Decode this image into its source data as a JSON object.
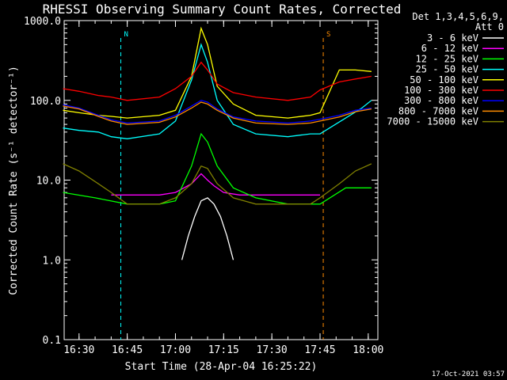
{
  "chart_data": {
    "type": "line",
    "title": "RHESSI Observing Summary Count Rates, Corrected",
    "xlabel": "Start Time (28-Apr-04 16:25:22)",
    "ylabel": "Corrected Count Rate (s⁻¹ detector⁻¹)",
    "yscale": "log",
    "ylim": [
      0.1,
      1000
    ],
    "xlim": [
      "16:25:22",
      "18:03:00"
    ],
    "yticks": [
      "1000.0",
      "100.0",
      "10.0",
      "1.0",
      "0.1"
    ],
    "xticks": [
      "16:30",
      "16:45",
      "17:00",
      "17:15",
      "17:30",
      "17:45",
      "18:00"
    ],
    "legend_header": [
      "Det 1,3,4,5,6,9,",
      "Att 0"
    ],
    "legend_position": "right",
    "footer": "17-Oct-2021 03:57",
    "markers": [
      {
        "label": "N",
        "color": "#00ffff",
        "x": "16:43"
      },
      {
        "label": "S",
        "color": "#ff8c00",
        "x": "17:46"
      }
    ],
    "series": [
      {
        "name": "3 - 6 keV",
        "color": "#ffffff",
        "x": [
          "17:02",
          "17:04",
          "17:06",
          "17:08",
          "17:10",
          "17:12",
          "17:14",
          "17:16",
          "17:18"
        ],
        "values": [
          1.0,
          2.0,
          3.5,
          5.5,
          6.0,
          5.0,
          3.5,
          2.0,
          1.0
        ]
      },
      {
        "name": "6 - 12 keV",
        "color": "#ff00ff",
        "x": [
          "16:40",
          "16:45",
          "16:50",
          "16:55",
          "17:00",
          "17:05",
          "17:08",
          "17:10",
          "17:12",
          "17:15",
          "17:20",
          "17:25",
          "17:30",
          "17:35",
          "17:40",
          "17:45"
        ],
        "values": [
          6.5,
          6.5,
          6.5,
          6.5,
          7.0,
          9.0,
          12.0,
          10.0,
          8.5,
          7.0,
          6.5,
          6.5,
          6.5,
          6.5,
          6.5,
          6.5
        ]
      },
      {
        "name": "12 - 25 keV",
        "color": "#00ff00",
        "x": [
          "16:25",
          "16:35",
          "16:45",
          "16:55",
          "17:00",
          "17:05",
          "17:08",
          "17:10",
          "17:13",
          "17:18",
          "17:25",
          "17:35",
          "17:45",
          "17:53",
          "17:58",
          "18:01"
        ],
        "values": [
          7.0,
          6.0,
          5.0,
          5.0,
          5.5,
          15.0,
          38.0,
          30.0,
          15.0,
          8.0,
          6.0,
          5.0,
          5.0,
          8.0,
          8.0,
          8.0
        ]
      },
      {
        "name": "25 - 50 keV",
        "color": "#00ffff",
        "x": [
          "16:25",
          "16:30",
          "16:36",
          "16:40",
          "16:45",
          "16:55",
          "17:00",
          "17:05",
          "17:08",
          "17:10",
          "17:13",
          "17:18",
          "17:25",
          "17:35",
          "17:42",
          "17:45",
          "17:53",
          "17:58",
          "18:01"
        ],
        "values": [
          45,
          42,
          40,
          35,
          33,
          38,
          55,
          180,
          500,
          300,
          100,
          50,
          38,
          35,
          38,
          38,
          60,
          80,
          100
        ]
      },
      {
        "name": "50 - 100 keV",
        "color": "#ffff00",
        "x": [
          "16:25",
          "16:30",
          "16:36",
          "16:40",
          "16:45",
          "16:55",
          "17:00",
          "17:05",
          "17:08",
          "17:10",
          "17:13",
          "17:18",
          "17:25",
          "17:35",
          "17:42",
          "17:45",
          "17:51",
          "17:56",
          "18:01"
        ],
        "values": [
          75,
          70,
          65,
          63,
          60,
          65,
          75,
          200,
          800,
          500,
          150,
          90,
          65,
          60,
          65,
          70,
          240,
          240,
          230
        ]
      },
      {
        "name": "100 - 300 keV",
        "color": "#ff0000",
        "x": [
          "16:25",
          "16:30",
          "16:36",
          "16:40",
          "16:45",
          "16:55",
          "17:00",
          "17:05",
          "17:08",
          "17:10",
          "17:13",
          "17:18",
          "17:25",
          "17:35",
          "17:42",
          "17:45",
          "17:51",
          "17:56",
          "18:01"
        ],
        "values": [
          140,
          130,
          115,
          110,
          100,
          110,
          140,
          200,
          300,
          240,
          160,
          125,
          110,
          100,
          110,
          135,
          170,
          185,
          200
        ]
      },
      {
        "name": "300 - 800 keV",
        "color": "#0000ff",
        "x": [
          "16:25",
          "16:30",
          "16:36",
          "16:40",
          "16:45",
          "16:55",
          "17:00",
          "17:05",
          "17:08",
          "17:10",
          "17:13",
          "17:18",
          "17:25",
          "17:35",
          "17:42",
          "17:45",
          "17:51",
          "17:56",
          "18:01"
        ],
        "values": [
          88,
          80,
          65,
          57,
          52,
          55,
          65,
          85,
          100,
          95,
          78,
          62,
          55,
          52,
          55,
          58,
          65,
          75,
          80
        ]
      },
      {
        "name": "800 - 7000 keV",
        "color": "#ff8c00",
        "x": [
          "16:25",
          "16:30",
          "16:36",
          "16:40",
          "16:45",
          "16:55",
          "17:00",
          "17:05",
          "17:08",
          "17:10",
          "17:13",
          "17:18",
          "17:25",
          "17:35",
          "17:42",
          "17:45",
          "17:51",
          "17:56",
          "18:01"
        ],
        "values": [
          85,
          78,
          63,
          55,
          50,
          53,
          62,
          80,
          95,
          90,
          75,
          60,
          52,
          50,
          52,
          55,
          62,
          72,
          78
        ]
      },
      {
        "name": "7000 - 15000 keV",
        "color": "#808000",
        "x": [
          "16:25",
          "16:30",
          "16:36",
          "16:40",
          "16:45",
          "16:55",
          "17:00",
          "17:05",
          "17:08",
          "17:10",
          "17:13",
          "17:18",
          "17:25",
          "17:35",
          "17:42",
          "17:45",
          "17:51",
          "17:56",
          "18:01"
        ],
        "values": [
          16,
          13,
          9,
          7,
          5,
          5,
          6,
          9,
          15,
          14,
          9,
          6,
          5,
          5,
          5,
          6,
          9,
          13,
          16
        ]
      }
    ]
  }
}
